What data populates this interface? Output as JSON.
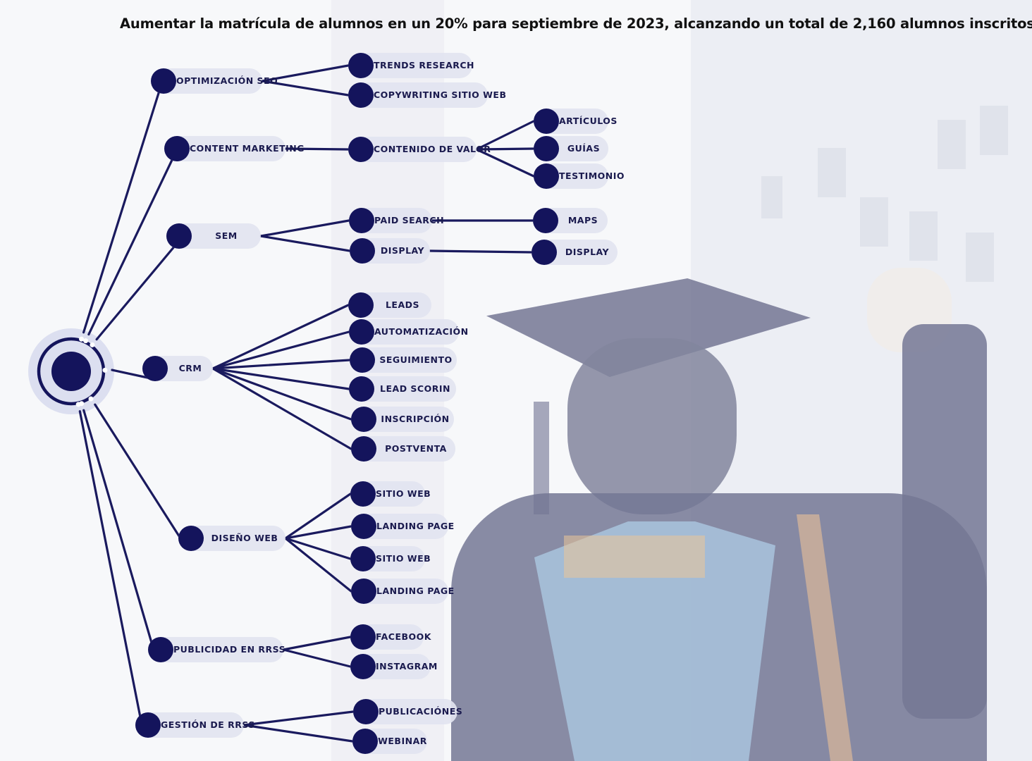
{
  "title": "Aumentar la matrícula de alumnos en un 20% para septiembre de 2023, alcanzando un total de 2,160 alumnos inscritos.",
  "colors": {
    "node": "#14145c",
    "line": "#1a1a5e",
    "pill": "#e2e4f0",
    "text": "#1a1a4e"
  },
  "branches": [
    {
      "label": "OPTIMIZACIÓN SEO",
      "children": [
        {
          "label": "TRENDS RESEARCH"
        },
        {
          "label": "COPYWRITING SITIO WEB"
        }
      ]
    },
    {
      "label": "CONTENT MARKETING",
      "children": [
        {
          "label": "CONTENIDO DE VALOR",
          "children": [
            {
              "label": "ARTÍCULOS"
            },
            {
              "label": "GUÍAS"
            },
            {
              "label": "TESTIMONIO"
            }
          ]
        }
      ]
    },
    {
      "label": "SEM",
      "children": [
        {
          "label": "PAID SEARCH",
          "children": [
            {
              "label": "MAPS"
            }
          ]
        },
        {
          "label": "DISPLAY",
          "children": [
            {
              "label": "DISPLAY"
            }
          ]
        }
      ]
    },
    {
      "label": "CRM",
      "children": [
        {
          "label": "LEADS"
        },
        {
          "label": "AUTOMATIZACIÓN"
        },
        {
          "label": "SEGUIMIENTO"
        },
        {
          "label": "LEAD SCORIN"
        },
        {
          "label": "INSCRIPCIÓN"
        },
        {
          "label": "POSTVENTA"
        }
      ]
    },
    {
      "label": "DISEÑO WEB",
      "children": [
        {
          "label": "SITIO WEB"
        },
        {
          "label": "LANDING PAGE"
        },
        {
          "label": "SITIO WEB"
        },
        {
          "label": "LANDING PAGE"
        }
      ]
    },
    {
      "label": "PUBLICIDAD EN RRSS",
      "children": [
        {
          "label": "FACEBOOK"
        },
        {
          "label": "INSTAGRAM"
        }
      ]
    },
    {
      "label": "GESTIÓN DE RRSS",
      "children": [
        {
          "label": "PUBLICACIÓNES"
        },
        {
          "label": "WEBINAR"
        }
      ]
    }
  ]
}
